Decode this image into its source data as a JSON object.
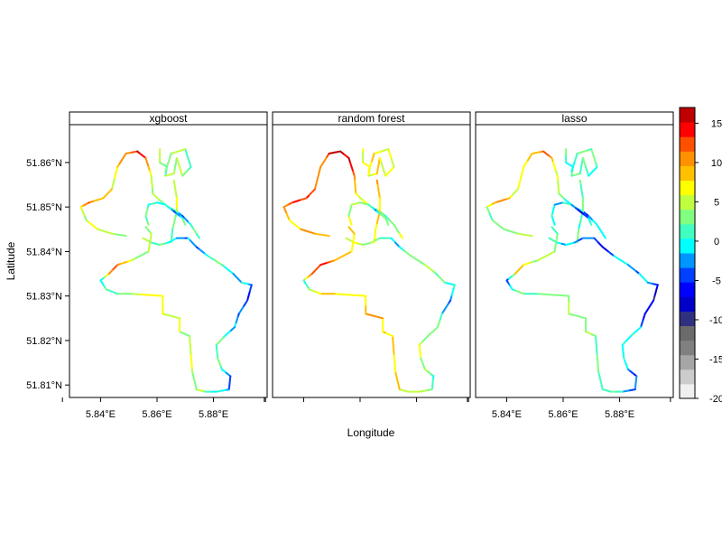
{
  "figure": {
    "xlabel": "Longitude",
    "ylabel": "Latitude",
    "panels": [
      {
        "title": "xgboost",
        "bias": 0
      },
      {
        "title": "random forest",
        "bias": 3
      },
      {
        "title": "lasso",
        "bias": -2
      }
    ],
    "lat_ticks": [
      "51.86°N",
      "51.85°N",
      "51.84°N",
      "51.83°N",
      "51.82°N",
      "51.81°N"
    ],
    "lon_ticks": [
      "5.84°E",
      "5.86°E",
      "5.88°E"
    ],
    "xlim": [
      5.829,
      5.899
    ],
    "ylim": [
      51.8072,
      51.8685
    ]
  },
  "legend": {
    "ticks": [
      "15",
      "10",
      "5",
      "0",
      "-5",
      "-10",
      "-15",
      "-20"
    ],
    "range": [
      -20,
      17
    ],
    "colors": [
      "#F0F0F0",
      "#CCCCCC",
      "#A6A6A6",
      "#808080",
      "#6B6B6B",
      "#303080",
      "#0000C8",
      "#0000FF",
      "#0040FF",
      "#0096FF",
      "#00FFFF",
      "#40FFC0",
      "#80FF80",
      "#C0FF40",
      "#FFFF00",
      "#FFC000",
      "#FF9000",
      "#FF5000",
      "#FF0000",
      "#C00000"
    ]
  },
  "chart_data": {
    "type": "heatmap",
    "xlabel": "Longitude",
    "ylabel": "Latitude",
    "panels": [
      "xgboost",
      "random forest",
      "lasso"
    ],
    "color_scale": {
      "min": -20,
      "max": 17,
      "ticks": [
        15,
        10,
        5,
        0,
        -5,
        -10,
        -15,
        -20
      ]
    },
    "tracks": [
      {
        "name": "",
        "points": [
          [
            5.844,
            51.854
          ],
          [
            5.846,
            51.859
          ],
          [
            5.849,
            51.862
          ],
          [
            5.853,
            51.8625
          ],
          [
            5.856,
            51.861
          ],
          [
            5.858,
            51.857
          ],
          [
            5.8585,
            51.853
          ],
          [
            5.861,
            51.8515
          ],
          [
            5.864,
            51.85
          ],
          [
            5.867,
            51.849
          ],
          [
            5.869,
            51.848
          ],
          [
            5.872,
            51.846
          ],
          [
            5.874,
            51.844
          ],
          [
            5.875,
            51.843
          ]
        ],
        "values": [
          7,
          8,
          11,
          14,
          12,
          7,
          5,
          4,
          2,
          0,
          -3,
          1,
          2,
          3
        ]
      },
      {
        "name": "",
        "points": [
          [
            5.844,
            51.854
          ],
          [
            5.841,
            51.852
          ],
          [
            5.836,
            51.851
          ],
          [
            5.833,
            51.85
          ],
          [
            5.835,
            51.847
          ],
          [
            5.839,
            51.845
          ],
          [
            5.844,
            51.844
          ],
          [
            5.849,
            51.8435
          ]
        ],
        "values": [
          8,
          9,
          12,
          8,
          4,
          5,
          6,
          5
        ]
      },
      {
        "name": "",
        "points": [
          [
            5.861,
            51.863
          ],
          [
            5.861,
            51.86
          ],
          [
            5.8635,
            51.859
          ],
          [
            5.863,
            51.857
          ],
          [
            5.866,
            51.8575
          ],
          [
            5.867,
            51.861
          ],
          [
            5.869,
            51.857
          ],
          [
            5.872,
            51.859
          ],
          [
            5.87,
            51.863
          ],
          [
            5.865,
            51.862
          ],
          [
            5.863,
            51.858
          ]
        ],
        "values": [
          4,
          3,
          2,
          4,
          5,
          4,
          3,
          2,
          4,
          5,
          3
        ]
      },
      {
        "name": "",
        "points": [
          [
            5.866,
            51.856
          ],
          [
            5.867,
            51.852
          ],
          [
            5.867,
            51.849
          ],
          [
            5.8655,
            51.845
          ],
          [
            5.865,
            51.842
          ]
        ],
        "values": [
          6,
          5,
          4,
          3,
          4
        ]
      },
      {
        "name": "",
        "points": [
          [
            5.855,
            51.843
          ],
          [
            5.858,
            51.842
          ],
          [
            5.861,
            51.8415
          ],
          [
            5.864,
            51.842
          ],
          [
            5.867,
            51.843
          ],
          [
            5.871,
            51.843
          ],
          [
            5.874,
            51.841
          ],
          [
            5.878,
            51.839
          ],
          [
            5.883,
            51.837
          ],
          [
            5.887,
            51.835
          ],
          [
            5.89,
            51.833
          ],
          [
            5.8935,
            51.8325
          ],
          [
            5.892,
            51.829
          ],
          [
            5.889,
            51.826
          ],
          [
            5.8875,
            51.823
          ]
        ],
        "values": [
          4,
          3,
          1,
          0,
          -1,
          -2,
          -4,
          0,
          1,
          -1,
          0,
          -3,
          -6,
          -4,
          -1
        ]
      },
      {
        "name": "",
        "points": [
          [
            5.8875,
            51.823
          ],
          [
            5.884,
            51.821
          ],
          [
            5.881,
            51.819
          ],
          [
            5.8815,
            51.816
          ],
          [
            5.883,
            51.8135
          ],
          [
            5.886,
            51.812
          ],
          [
            5.8855,
            51.809
          ]
        ],
        "values": [
          -1,
          1,
          3,
          2,
          0,
          -3,
          -2
        ]
      },
      {
        "name": "",
        "points": [
          [
            5.8855,
            51.809
          ],
          [
            5.881,
            51.8085
          ],
          [
            5.877,
            51.8085
          ],
          [
            5.874,
            51.809
          ],
          [
            5.8725,
            51.813
          ],
          [
            5.872,
            51.817
          ],
          [
            5.8715,
            51.821
          ],
          [
            5.868,
            51.822
          ],
          [
            5.868,
            51.825
          ],
          [
            5.862,
            51.826
          ],
          [
            5.862,
            51.83
          ]
        ],
        "values": [
          -2,
          1,
          3,
          4,
          4,
          5,
          4,
          5,
          6,
          6,
          5
        ]
      },
      {
        "name": "",
        "points": [
          [
            5.862,
            51.83
          ],
          [
            5.851,
            51.8305
          ],
          [
            5.846,
            51.8305
          ],
          [
            5.842,
            51.8315
          ],
          [
            5.84,
            51.8335
          ],
          [
            5.843,
            51.835
          ],
          [
            5.846,
            51.837
          ],
          [
            5.851,
            51.838
          ],
          [
            5.857,
            51.84
          ],
          [
            5.858,
            51.844
          ],
          [
            5.856,
            51.8455
          ]
        ],
        "values": [
          5,
          4,
          4,
          2,
          -2,
          9,
          11,
          6,
          5,
          5,
          4
        ]
      },
      {
        "name": "",
        "points": [
          [
            5.857,
            51.846
          ],
          [
            5.856,
            51.848
          ],
          [
            5.857,
            51.8505
          ],
          [
            5.86,
            51.851
          ],
          [
            5.863,
            51.8505
          ],
          [
            5.866,
            51.849
          ],
          [
            5.869,
            51.8475
          ],
          [
            5.87,
            51.846
          ]
        ],
        "values": [
          4,
          2,
          0,
          1,
          1,
          -4,
          0,
          2
        ]
      }
    ]
  }
}
